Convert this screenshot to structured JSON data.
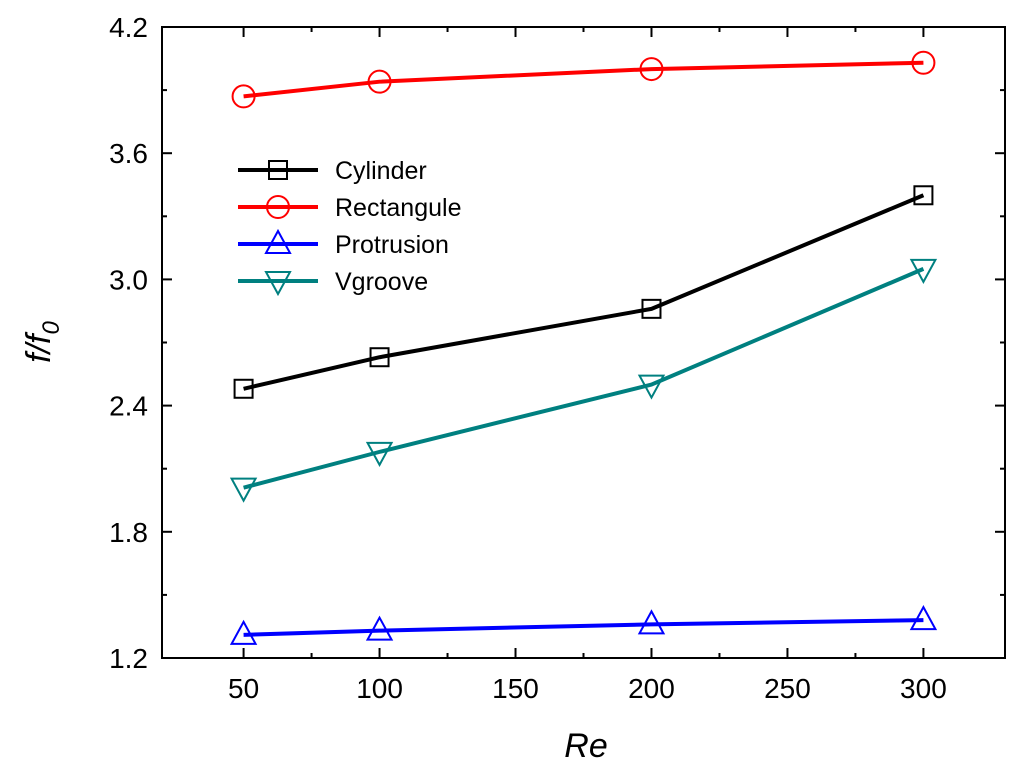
{
  "chart_data": {
    "type": "line",
    "xlabel": "Re",
    "ylabel": "f/f",
    "ylabel_subscript": "0",
    "xlim": [
      20,
      330
    ],
    "ylim": [
      1.2,
      4.2
    ],
    "xticks": [
      50,
      100,
      150,
      200,
      250,
      300
    ],
    "yticks": [
      1.2,
      1.8,
      2.4,
      3.0,
      3.6,
      4.2
    ],
    "x_tick_labels": [
      "50",
      "100",
      "150",
      "200",
      "250",
      "300"
    ],
    "y_tick_labels": [
      "1.2",
      "1.8",
      "2.4",
      "3.0",
      "3.6",
      "4.2"
    ],
    "legend_position": "upper-left",
    "grid": false,
    "x": [
      50,
      100,
      200,
      300
    ],
    "series": [
      {
        "name": "Cylinder",
        "color": "#000000",
        "marker": "square",
        "values": [
          2.48,
          2.63,
          2.86,
          3.4
        ]
      },
      {
        "name": "Rectangule",
        "color": "#ff0000",
        "marker": "circle",
        "values": [
          3.87,
          3.94,
          4.0,
          4.03
        ]
      },
      {
        "name": "Protrusion",
        "color": "#0000ff",
        "marker": "triangle-up",
        "values": [
          1.31,
          1.33,
          1.36,
          1.38
        ]
      },
      {
        "name": "Vgroove",
        "color": "#008080",
        "marker": "triangle-down",
        "values": [
          2.01,
          2.18,
          2.5,
          3.05
        ]
      }
    ]
  }
}
